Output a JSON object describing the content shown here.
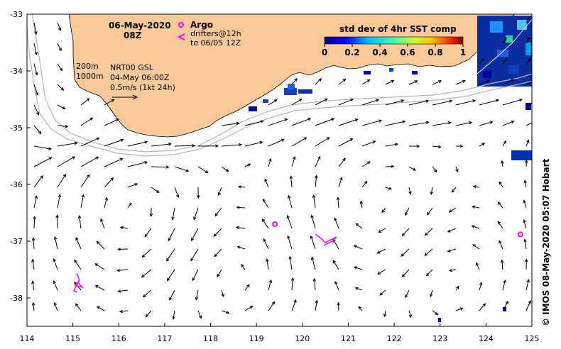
{
  "map": {
    "title_date": "06-May-2020",
    "title_time": "08Z",
    "legend_argo": "Argo",
    "legend_drifters_1": "drifters@12h",
    "legend_drifters_2": "to 06/05 12Z",
    "contour_label_200": "200m",
    "contour_label_1000": "1000m",
    "product_line1": "NRT00 GSL",
    "product_line2": "04-May 06:00Z",
    "product_line3": "0.5m/s (1kt 24h)",
    "colorbar_title": "std dev of 4hr SST comp",
    "colorbar_ticks": [
      "0",
      "0.2",
      "0.4",
      "0.6",
      "0.8",
      "1"
    ],
    "x_ticks": [
      "114",
      "115",
      "116",
      "117",
      "118",
      "119",
      "120",
      "121",
      "122",
      "123",
      "124",
      "125"
    ],
    "y_ticks": [
      "-33",
      "-34",
      "-35",
      "-36",
      "-37",
      "-38"
    ],
    "credit": "© IMOS 08-May-2020 05:07 Hobart",
    "colors": {
      "land": "#f9c99a",
      "argo": "#ff00ff",
      "drifter": "#ff00ff",
      "contour": "#b4b4b4"
    },
    "argo_floats": [
      {
        "lon": 119.4,
        "lat": -36.7
      },
      {
        "lon": 124.75,
        "lat": -36.88
      }
    ]
  }
}
